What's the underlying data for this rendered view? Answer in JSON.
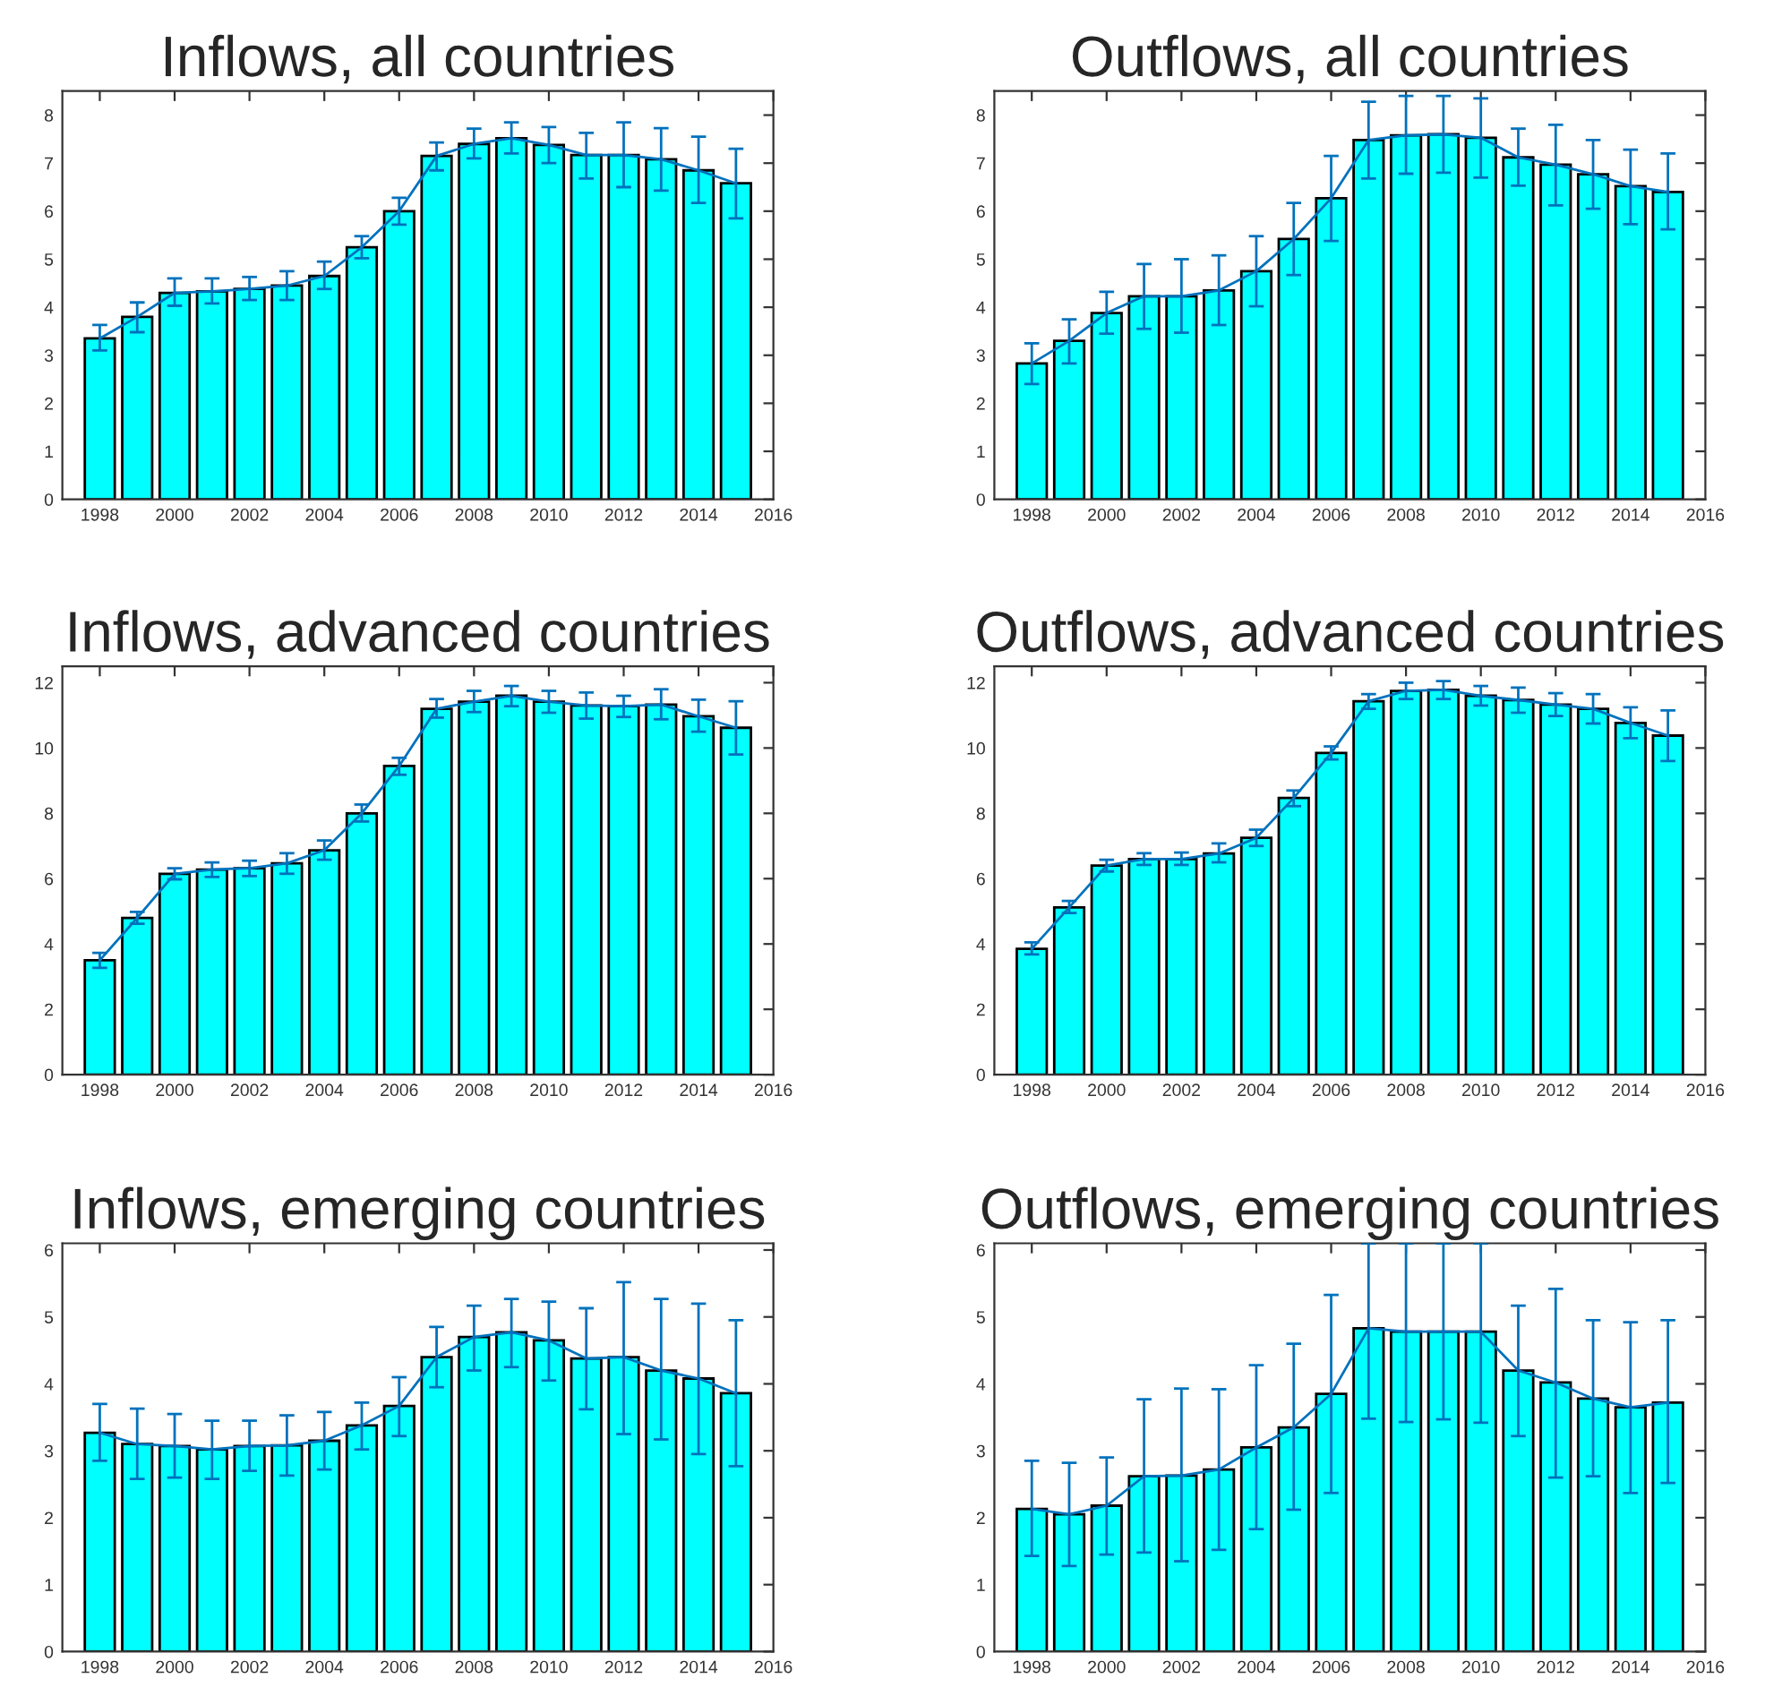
{
  "chart_data": [
    {
      "type": "bar",
      "title": "Inflows, all countries",
      "x": [
        1998,
        1999,
        2000,
        2001,
        2002,
        2003,
        2004,
        2005,
        2006,
        2007,
        2008,
        2009,
        2010,
        2011,
        2012,
        2013,
        2014,
        2015
      ],
      "xlim": [
        1997,
        2016
      ],
      "xticks": [
        1998,
        2000,
        2002,
        2004,
        2006,
        2008,
        2010,
        2012,
        2014,
        2016
      ],
      "ylim": [
        0,
        8.5
      ],
      "yticks": [
        0,
        1,
        2,
        3,
        4,
        5,
        6,
        7,
        8
      ],
      "series": [
        {
          "color": "#00ffff",
          "values": [
            3.35,
            3.8,
            4.3,
            4.33,
            4.38,
            4.45,
            4.65,
            5.25,
            6.0,
            7.15,
            7.4,
            7.52,
            7.38,
            7.17,
            7.17,
            7.08,
            6.85,
            6.58
          ],
          "errors": [
            [
              3.1,
              3.63
            ],
            [
              3.48,
              4.1
            ],
            [
              4.03,
              4.6
            ],
            [
              4.08,
              4.6
            ],
            [
              4.15,
              4.63
            ],
            [
              4.15,
              4.75
            ],
            [
              4.38,
              4.95
            ],
            [
              5.02,
              5.48
            ],
            [
              5.72,
              6.28
            ],
            [
              6.85,
              7.43
            ],
            [
              7.1,
              7.72
            ],
            [
              7.2,
              7.85
            ],
            [
              7.0,
              7.75
            ],
            [
              6.68,
              7.63
            ],
            [
              6.5,
              7.85
            ],
            [
              6.43,
              7.73
            ],
            [
              6.17,
              7.55
            ],
            [
              5.85,
              7.3
            ]
          ]
        },
        {
          "type": "line",
          "color": "#0072bd",
          "values": [
            3.35,
            3.8,
            4.3,
            4.33,
            4.38,
            4.45,
            4.65,
            5.25,
            6.0,
            7.15,
            7.4,
            7.52,
            7.38,
            7.17,
            7.17,
            7.08,
            6.85,
            6.58
          ]
        }
      ]
    },
    {
      "type": "bar",
      "title": "Outflows, all countries",
      "x": [
        1998,
        1999,
        2000,
        2001,
        2002,
        2003,
        2004,
        2005,
        2006,
        2007,
        2008,
        2009,
        2010,
        2011,
        2012,
        2013,
        2014,
        2015
      ],
      "xlim": [
        1997,
        2016
      ],
      "xticks": [
        1998,
        2000,
        2002,
        2004,
        2006,
        2008,
        2010,
        2012,
        2014,
        2016
      ],
      "ylim": [
        0,
        8.5
      ],
      "yticks": [
        0,
        1,
        2,
        3,
        4,
        5,
        6,
        7,
        8
      ],
      "series": [
        {
          "color": "#00ffff",
          "values": [
            2.83,
            3.3,
            3.88,
            4.23,
            4.23,
            4.35,
            4.75,
            5.42,
            6.27,
            7.48,
            7.58,
            7.6,
            7.53,
            7.12,
            6.97,
            6.77,
            6.52,
            6.4
          ],
          "errors": [
            [
              2.4,
              3.25
            ],
            [
              2.83,
              3.75
            ],
            [
              3.45,
              4.32
            ],
            [
              3.55,
              4.9
            ],
            [
              3.47,
              5.0
            ],
            [
              3.63,
              5.08
            ],
            [
              4.02,
              5.48
            ],
            [
              4.67,
              6.17
            ],
            [
              5.38,
              7.15
            ],
            [
              6.68,
              8.28
            ],
            [
              6.78,
              8.4
            ],
            [
              6.8,
              8.4
            ],
            [
              6.7,
              8.35
            ],
            [
              6.53,
              7.72
            ],
            [
              6.12,
              7.8
            ],
            [
              6.05,
              7.48
            ],
            [
              5.73,
              7.28
            ],
            [
              5.62,
              7.2
            ]
          ]
        },
        {
          "type": "line",
          "color": "#0072bd",
          "values": [
            2.83,
            3.3,
            3.88,
            4.23,
            4.23,
            4.35,
            4.75,
            5.42,
            6.27,
            7.48,
            7.58,
            7.6,
            7.53,
            7.12,
            6.97,
            6.77,
            6.52,
            6.4
          ]
        }
      ]
    },
    {
      "type": "bar",
      "title": "Inflows, advanced countries",
      "x": [
        1998,
        1999,
        2000,
        2001,
        2002,
        2003,
        2004,
        2005,
        2006,
        2007,
        2008,
        2009,
        2010,
        2011,
        2012,
        2013,
        2014,
        2015
      ],
      "xlim": [
        1997,
        2016
      ],
      "xticks": [
        1998,
        2000,
        2002,
        2004,
        2006,
        2008,
        2010,
        2012,
        2014,
        2016
      ],
      "ylim": [
        0,
        12.5
      ],
      "yticks": [
        0,
        2,
        4,
        6,
        8,
        10,
        12
      ],
      "series": [
        {
          "color": "#00ffff",
          "values": [
            3.5,
            4.8,
            6.15,
            6.28,
            6.32,
            6.47,
            6.87,
            8.0,
            9.45,
            11.2,
            11.42,
            11.6,
            11.42,
            11.3,
            11.28,
            11.33,
            10.97,
            10.62
          ],
          "errors": [
            [
              3.27,
              3.73
            ],
            [
              4.62,
              4.98
            ],
            [
              5.98,
              6.32
            ],
            [
              6.05,
              6.5
            ],
            [
              6.08,
              6.55
            ],
            [
              6.15,
              6.78
            ],
            [
              6.58,
              7.17
            ],
            [
              7.75,
              8.27
            ],
            [
              9.18,
              9.7
            ],
            [
              10.93,
              11.5
            ],
            [
              11.1,
              11.75
            ],
            [
              11.28,
              11.9
            ],
            [
              11.08,
              11.75
            ],
            [
              10.9,
              11.7
            ],
            [
              10.95,
              11.6
            ],
            [
              10.88,
              11.8
            ],
            [
              10.5,
              11.48
            ],
            [
              9.8,
              11.43
            ]
          ]
        },
        {
          "type": "line",
          "color": "#0072bd",
          "values": [
            3.5,
            4.8,
            6.15,
            6.28,
            6.32,
            6.47,
            6.87,
            8.0,
            9.45,
            11.2,
            11.42,
            11.6,
            11.42,
            11.3,
            11.28,
            11.33,
            10.97,
            10.62
          ]
        }
      ]
    },
    {
      "type": "bar",
      "title": "Outflows, advanced countries",
      "x": [
        1998,
        1999,
        2000,
        2001,
        2002,
        2003,
        2004,
        2005,
        2006,
        2007,
        2008,
        2009,
        2010,
        2011,
        2012,
        2013,
        2014,
        2015
      ],
      "xlim": [
        1997,
        2016
      ],
      "xticks": [
        1998,
        2000,
        2002,
        2004,
        2006,
        2008,
        2010,
        2012,
        2014,
        2016
      ],
      "ylim": [
        0,
        12.5
      ],
      "yticks": [
        0,
        2,
        4,
        6,
        8,
        10,
        12
      ],
      "series": [
        {
          "color": "#00ffff",
          "values": [
            3.85,
            5.12,
            6.4,
            6.6,
            6.6,
            6.77,
            7.25,
            8.47,
            9.85,
            11.43,
            11.75,
            11.78,
            11.6,
            11.47,
            11.33,
            11.2,
            10.77,
            10.38
          ],
          "errors": [
            [
              3.68,
              4.05
            ],
            [
              4.95,
              5.32
            ],
            [
              6.22,
              6.58
            ],
            [
              6.42,
              6.78
            ],
            [
              6.42,
              6.8
            ],
            [
              6.5,
              7.08
            ],
            [
              7.0,
              7.5
            ],
            [
              8.22,
              8.7
            ],
            [
              9.65,
              10.05
            ],
            [
              11.2,
              11.65
            ],
            [
              11.5,
              12.0
            ],
            [
              11.5,
              12.05
            ],
            [
              11.3,
              11.9
            ],
            [
              11.08,
              11.85
            ],
            [
              10.98,
              11.68
            ],
            [
              10.75,
              11.65
            ],
            [
              10.3,
              11.25
            ],
            [
              9.6,
              11.15
            ]
          ]
        },
        {
          "type": "line",
          "color": "#0072bd",
          "values": [
            3.85,
            5.12,
            6.4,
            6.6,
            6.6,
            6.77,
            7.25,
            8.47,
            9.85,
            11.43,
            11.75,
            11.78,
            11.6,
            11.47,
            11.33,
            11.2,
            10.77,
            10.38
          ]
        }
      ]
    },
    {
      "type": "bar",
      "title": "Inflows, emerging countries",
      "x": [
        1998,
        1999,
        2000,
        2001,
        2002,
        2003,
        2004,
        2005,
        2006,
        2007,
        2008,
        2009,
        2010,
        2011,
        2012,
        2013,
        2014,
        2015
      ],
      "xlim": [
        1997,
        2016
      ],
      "xticks": [
        1998,
        2000,
        2002,
        2004,
        2006,
        2008,
        2010,
        2012,
        2014,
        2016
      ],
      "ylim": [
        0,
        6.1
      ],
      "yticks": [
        0,
        1,
        2,
        3,
        4,
        5,
        6
      ],
      "series": [
        {
          "color": "#00ffff",
          "values": [
            3.27,
            3.1,
            3.07,
            3.02,
            3.07,
            3.08,
            3.15,
            3.38,
            3.67,
            4.4,
            4.7,
            4.77,
            4.65,
            4.38,
            4.4,
            4.2,
            4.08,
            3.86
          ],
          "errors": [
            [
              2.85,
              3.7
            ],
            [
              2.58,
              3.63
            ],
            [
              2.6,
              3.55
            ],
            [
              2.58,
              3.45
            ],
            [
              2.7,
              3.45
            ],
            [
              2.63,
              3.53
            ],
            [
              2.72,
              3.58
            ],
            [
              3.02,
              3.72
            ],
            [
              3.22,
              4.1
            ],
            [
              3.95,
              4.85
            ],
            [
              4.2,
              5.17
            ],
            [
              4.25,
              5.27
            ],
            [
              4.05,
              5.23
            ],
            [
              3.62,
              5.13
            ],
            [
              3.25,
              5.52
            ],
            [
              3.17,
              5.27
            ],
            [
              2.95,
              5.2
            ],
            [
              2.77,
              4.95
            ]
          ]
        },
        {
          "type": "line",
          "color": "#0072bd",
          "values": [
            3.27,
            3.1,
            3.07,
            3.02,
            3.07,
            3.08,
            3.15,
            3.38,
            3.67,
            4.4,
            4.7,
            4.77,
            4.65,
            4.38,
            4.4,
            4.2,
            4.08,
            3.86
          ]
        }
      ]
    },
    {
      "type": "bar",
      "title": "Outflows, emerging countries",
      "x": [
        1998,
        1999,
        2000,
        2001,
        2002,
        2003,
        2004,
        2005,
        2006,
        2007,
        2008,
        2009,
        2010,
        2011,
        2012,
        2013,
        2014,
        2015
      ],
      "xlim": [
        1997,
        2016
      ],
      "xticks": [
        1998,
        2000,
        2002,
        2004,
        2006,
        2008,
        2010,
        2012,
        2014,
        2016
      ],
      "ylim": [
        0,
        6.1
      ],
      "yticks": [
        0,
        1,
        2,
        3,
        4,
        5,
        6
      ],
      "series": [
        {
          "color": "#00ffff",
          "values": [
            2.13,
            2.05,
            2.18,
            2.62,
            2.63,
            2.72,
            3.05,
            3.35,
            3.85,
            4.83,
            4.78,
            4.78,
            4.78,
            4.2,
            4.02,
            3.78,
            3.65,
            3.72
          ],
          "errors": [
            [
              1.43,
              2.85
            ],
            [
              1.28,
              2.82
            ],
            [
              1.45,
              2.9
            ],
            [
              1.48,
              3.77
            ],
            [
              1.35,
              3.93
            ],
            [
              1.52,
              3.92
            ],
            [
              1.83,
              4.28
            ],
            [
              2.12,
              4.6
            ],
            [
              2.37,
              5.33
            ],
            [
              3.48,
              6.1
            ],
            [
              3.43,
              6.1
            ],
            [
              3.47,
              6.1
            ],
            [
              3.42,
              6.1
            ],
            [
              3.22,
              5.17
            ],
            [
              2.6,
              5.42
            ],
            [
              2.62,
              4.95
            ],
            [
              2.37,
              4.92
            ],
            [
              2.52,
              4.95
            ]
          ]
        },
        {
          "type": "line",
          "color": "#0072bd",
          "values": [
            2.13,
            2.05,
            2.18,
            2.62,
            2.63,
            2.72,
            3.05,
            3.35,
            3.85,
            4.83,
            4.78,
            4.78,
            4.78,
            4.2,
            4.02,
            3.78,
            3.65,
            3.72
          ]
        }
      ]
    }
  ]
}
